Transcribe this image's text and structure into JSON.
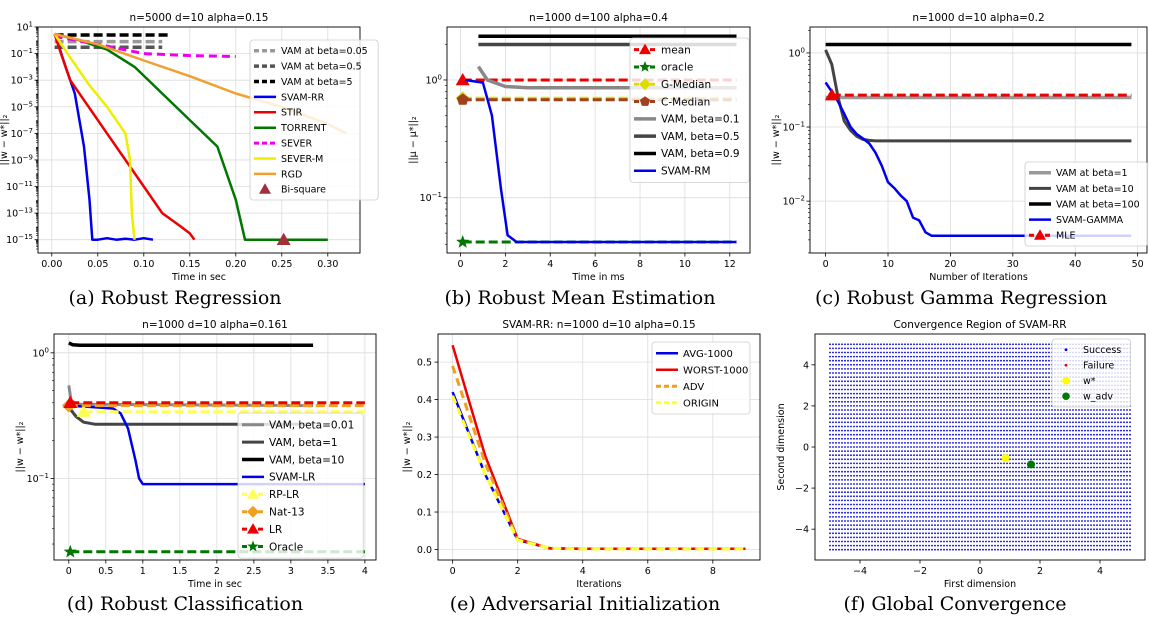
{
  "captions": {
    "a": "(a) Robust Regression",
    "b": "(b) Robust Mean Estimation",
    "c": "(c) Robust Gamma Regression",
    "d": "(d) Robust Classification",
    "e": "(e) Adversarial Initialization",
    "f": "(f) Global Convergence"
  },
  "chart_data": [
    {
      "id": "a",
      "type": "line",
      "title": "n=5000 d=10 alpha=0.15",
      "xlabel": "Time in sec",
      "ylabel": "||w − w*||₂",
      "yscale": "log",
      "xlim": [
        -0.015,
        0.335
      ],
      "ylim_exp": [
        -16,
        1
      ],
      "xticks": [
        0.0,
        0.05,
        0.1,
        0.15,
        0.2,
        0.25,
        0.3
      ],
      "xtick_labels": [
        "0.00",
        "0.05",
        "0.10",
        "0.15",
        "0.20",
        "0.25",
        "0.30"
      ],
      "ytick_exps": [
        1,
        -1,
        -3,
        -5,
        -7,
        -9,
        -11,
        -13,
        -15
      ],
      "grid": true,
      "legend": "right",
      "series": [
        {
          "name": "VAM at beta=0.05",
          "color": "#999999",
          "dash": "9,4",
          "width": 3.5,
          "x": [
            0.003,
            0.12
          ],
          "y": [
            0.8,
            0.8
          ]
        },
        {
          "name": "VAM at beta=0.5",
          "color": "#555555",
          "dash": "9,4",
          "width": 3.5,
          "x": [
            0.003,
            0.12
          ],
          "y": [
            0.3,
            0.3
          ]
        },
        {
          "name": "VAM at beta=5",
          "color": "#000000",
          "dash": "9,4",
          "width": 3.5,
          "x": [
            0.003,
            0.13
          ],
          "y": [
            2.5,
            2.5
          ]
        },
        {
          "name": "SVAM-RR",
          "color": "#0000ee",
          "width": 2.5,
          "x": [
            0.003,
            0.008,
            0.015,
            0.025,
            0.035,
            0.041,
            0.044,
            0.05,
            0.06,
            0.07,
            0.08,
            0.09,
            0.1,
            0.11
          ],
          "y": [
            3.0,
            0.3,
            0.01,
            0.0001,
            1e-08,
            1e-12,
            1e-15,
            1e-15,
            1.3e-15,
            1e-15,
            1.2e-15,
            1e-15,
            1.3e-15,
            1e-15
          ]
        },
        {
          "name": "STIR",
          "color": "#ee0000",
          "width": 2.5,
          "x": [
            0.003,
            0.01,
            0.02,
            0.04,
            0.06,
            0.08,
            0.1,
            0.12,
            0.14,
            0.15,
            0.155
          ],
          "y": [
            3.0,
            0.1,
            0.001,
            1e-05,
            1e-07,
            1e-09,
            1e-11,
            1e-13,
            1e-14,
            3e-15,
            1e-15
          ]
        },
        {
          "name": "TORRENT",
          "color": "#007700",
          "width": 2.5,
          "x": [
            0.003,
            0.03,
            0.06,
            0.09,
            0.12,
            0.15,
            0.18,
            0.2,
            0.21,
            0.3
          ],
          "y": [
            3.0,
            1.0,
            0.2,
            0.01,
            0.0001,
            1e-06,
            1e-08,
            1e-12,
            1e-15,
            1e-15
          ]
        },
        {
          "name": "SEVER",
          "color": "#ee00ee",
          "dash": "8,5",
          "width": 3,
          "x": [
            0.003,
            0.05,
            0.1,
            0.15,
            0.2
          ],
          "y": [
            2.0,
            0.5,
            0.1,
            0.07,
            0.06
          ]
        },
        {
          "name": "SEVER-M",
          "color": "#eeee00",
          "width": 2.5,
          "x": [
            0.003,
            0.02,
            0.04,
            0.06,
            0.08,
            0.085,
            0.087,
            0.09
          ],
          "y": [
            3.0,
            0.05,
            0.0005,
            1e-05,
            1e-07,
            1e-09,
            1e-13,
            1e-15
          ]
        },
        {
          "name": "RGD",
          "color": "#f0a030",
          "width": 2.5,
          "x": [
            0.003,
            0.05,
            0.1,
            0.15,
            0.2,
            0.25,
            0.3,
            0.32
          ],
          "y": [
            3.0,
            0.5,
            0.03,
            0.002,
            0.0001,
            1e-05,
            5e-07,
            1e-07
          ]
        },
        {
          "name": "Bi-square",
          "color": "#a0303a",
          "marker": "triangle",
          "x": [
            0.252
          ],
          "y": [
            1e-15
          ]
        }
      ]
    },
    {
      "id": "b",
      "type": "line",
      "title": "n=1000 d=100 alpha=0.4",
      "xlabel": "Time in ms",
      "ylabel": "||μ − μ*||₂",
      "yscale": "log",
      "xlim": [
        -0.6,
        12.9
      ],
      "ylim_exp": [
        -1.47,
        0.45
      ],
      "xticks": [
        0,
        2,
        4,
        6,
        8,
        10,
        12
      ],
      "ytick_exps": [
        0,
        -1
      ],
      "grid": true,
      "legend": "top-right",
      "series": [
        {
          "name": "mean",
          "color": "#ee0000",
          "marker": "triangle",
          "dash": "9,4",
          "width": 3,
          "x": [
            0.1,
            12.3
          ],
          "y": [
            1.0,
            1.0
          ]
        },
        {
          "name": "oracle",
          "color": "#007700",
          "marker": "star",
          "dash": "9,4",
          "width": 3,
          "x": [
            0.1,
            12.3
          ],
          "y": [
            0.042,
            0.042
          ]
        },
        {
          "name": "G-Median",
          "color": "#dddd00",
          "marker": "diamond",
          "dash": "9,4",
          "width": 3,
          "x": [
            0.1,
            12.3
          ],
          "y": [
            0.7,
            0.7
          ]
        },
        {
          "name": "C-Median",
          "color": "#a04020",
          "marker": "pentagon",
          "dash": "9,4",
          "width": 3,
          "x": [
            0.1,
            12.3
          ],
          "y": [
            0.68,
            0.68
          ]
        },
        {
          "name": "VAM, beta=0.1",
          "color": "#888888",
          "width": 3.5,
          "x": [
            0.8,
            1.2,
            2.0,
            3.0,
            12.3
          ],
          "y": [
            1.3,
            1.0,
            0.88,
            0.86,
            0.86
          ]
        },
        {
          "name": "VAM, beta=0.5",
          "color": "#444444",
          "width": 3.5,
          "x": [
            0.8,
            12.3
          ],
          "y": [
            2.0,
            2.0
          ]
        },
        {
          "name": "VAM, beta=0.9",
          "color": "#000000",
          "width": 3.5,
          "x": [
            0.8,
            12.3
          ],
          "y": [
            2.35,
            2.35
          ]
        },
        {
          "name": "SVAM-RM",
          "color": "#0000ee",
          "width": 2.5,
          "x": [
            0.2,
            1.0,
            1.4,
            1.8,
            2.1,
            2.5,
            12.3
          ],
          "y": [
            1.0,
            0.95,
            0.5,
            0.12,
            0.048,
            0.042,
            0.042
          ]
        }
      ]
    },
    {
      "id": "c",
      "type": "line",
      "title": "n=1000 d=10 alpha=0.2",
      "xlabel": "Number of Iterations",
      "ylabel": "||w − w*||₂",
      "yscale": "log",
      "xlim": [
        -2.5,
        51.5
      ],
      "ylim_exp": [
        -2.7,
        0.35
      ],
      "xticks": [
        0,
        10,
        20,
        30,
        40,
        50
      ],
      "ytick_exps": [
        0,
        -1,
        -2
      ],
      "grid": true,
      "legend": "bottom-right",
      "series": [
        {
          "name": "VAM at beta=1",
          "color": "#999999",
          "width": 3.5,
          "x": [
            0,
            49
          ],
          "y": [
            0.25,
            0.25
          ]
        },
        {
          "name": "VAM at beta=10",
          "color": "#444444",
          "width": 3,
          "x": [
            0,
            1,
            2,
            3,
            4,
            5,
            6,
            7,
            8,
            49
          ],
          "y": [
            1.1,
            0.7,
            0.25,
            0.12,
            0.09,
            0.075,
            0.068,
            0.066,
            0.065,
            0.065
          ]
        },
        {
          "name": "VAM at beta=100",
          "color": "#000000",
          "width": 3.5,
          "x": [
            0,
            49
          ],
          "y": [
            1.3,
            1.3
          ]
        },
        {
          "name": "SVAM-GAMMA",
          "color": "#0000ee",
          "width": 2.5,
          "x": [
            0,
            1,
            2,
            3,
            4,
            5,
            6,
            7,
            8,
            9,
            10,
            11,
            12,
            13,
            14,
            15,
            16,
            17,
            18,
            49
          ],
          "y": [
            0.4,
            0.3,
            0.22,
            0.15,
            0.1,
            0.08,
            0.07,
            0.06,
            0.045,
            0.03,
            0.018,
            0.015,
            0.012,
            0.01,
            0.006,
            0.0055,
            0.0038,
            0.0034,
            0.0034,
            0.0034
          ]
        },
        {
          "name": "MLE",
          "color": "#ee0000",
          "marker": "triangle",
          "dash": "9,4",
          "width": 3,
          "x": [
            1,
            49
          ],
          "y": [
            0.27,
            0.27
          ]
        }
      ]
    },
    {
      "id": "d",
      "type": "line",
      "title": "n=1000 d=10 alpha=0.161",
      "xlabel": "Time in sec",
      "ylabel": "||w − w*||₂",
      "yscale": "log",
      "xlim": [
        -0.2,
        4.15
      ],
      "ylim_exp": [
        -1.65,
        0.15
      ],
      "xticks": [
        0.0,
        0.5,
        1.0,
        1.5,
        2.0,
        2.5,
        3.0,
        3.5,
        4.0
      ],
      "ytick_exps": [
        0,
        -1
      ],
      "grid": true,
      "legend": "right",
      "series": [
        {
          "name": "VAM, beta=0.01",
          "color": "#888888",
          "width": 3,
          "x": [
            0,
            0.03,
            0.1,
            3.3
          ],
          "y": [
            0.55,
            0.42,
            0.39,
            0.38
          ]
        },
        {
          "name": "VAM, beta=1",
          "color": "#444444",
          "width": 3,
          "x": [
            0,
            0.03,
            0.1,
            0.2,
            0.35,
            3.3
          ],
          "y": [
            0.38,
            0.35,
            0.31,
            0.28,
            0.27,
            0.27
          ]
        },
        {
          "name": "VAM, beta=10",
          "color": "#000000",
          "width": 3.5,
          "x": [
            0,
            0.05,
            0.15,
            3.3
          ],
          "y": [
            1.2,
            1.16,
            1.15,
            1.15
          ]
        },
        {
          "name": "SVAM-LR",
          "color": "#0000ee",
          "width": 2.5,
          "x": [
            0,
            0.3,
            0.6,
            0.7,
            0.8,
            0.9,
            0.95,
            1.0,
            1.1,
            4.0
          ],
          "y": [
            0.38,
            0.37,
            0.36,
            0.33,
            0.25,
            0.14,
            0.1,
            0.09,
            0.09,
            0.09
          ]
        },
        {
          "name": "RP-LR",
          "color": "#ffff55",
          "marker": "triangle",
          "dash": "9,4",
          "width": 3,
          "x": [
            0.2,
            4.0
          ],
          "y": [
            0.34,
            0.34
          ]
        },
        {
          "name": "Nat-13",
          "color": "#f0a020",
          "marker": "diamond",
          "dash": "9,4",
          "width": 3,
          "x": [
            0.0,
            4.0
          ],
          "y": [
            0.38,
            0.38
          ]
        },
        {
          "name": "LR",
          "color": "#ee0000",
          "marker": "triangle",
          "dash": "9,4",
          "width": 3,
          "x": [
            0.02,
            4.0
          ],
          "y": [
            0.4,
            0.4
          ]
        },
        {
          "name": "Oracle",
          "color": "#007700",
          "marker": "star",
          "dash": "9,4",
          "width": 3,
          "x": [
            0.02,
            4.0
          ],
          "y": [
            0.026,
            0.026
          ]
        }
      ]
    },
    {
      "id": "e",
      "type": "line",
      "title": "SVAM-RR: n=1000 d=10 alpha=0.15",
      "xlabel": "Iterations",
      "ylabel": "||w − w*||₂",
      "yscale": "linear",
      "xlim": [
        -0.45,
        9.45
      ],
      "ylim": [
        -0.028,
        0.575
      ],
      "xticks": [
        0,
        2,
        4,
        6,
        8
      ],
      "yticks": [
        0.0,
        0.1,
        0.2,
        0.3,
        0.4,
        0.5
      ],
      "grid": true,
      "legend": "top-right",
      "series": [
        {
          "name": "AVG-1000",
          "color": "#0000ee",
          "width": 2.5,
          "x": [
            0,
            1,
            2,
            3,
            4,
            5,
            6,
            7,
            8,
            9
          ],
          "y": [
            0.42,
            0.2,
            0.025,
            0.003,
            0.002,
            0.002,
            0.002,
            0.002,
            0.002,
            0.002
          ]
        },
        {
          "name": "WORST-1000",
          "color": "#ee0000",
          "width": 2.5,
          "x": [
            0,
            1,
            2,
            3,
            4,
            5,
            6,
            7,
            8,
            9
          ],
          "y": [
            0.545,
            0.25,
            0.028,
            0.003,
            0.002,
            0.002,
            0.002,
            0.002,
            0.002,
            0.002
          ]
        },
        {
          "name": "ADV",
          "color": "#f0a020",
          "dash": "8,5",
          "width": 3,
          "x": [
            0,
            1,
            2,
            3,
            4,
            5,
            6,
            7,
            8,
            9
          ],
          "y": [
            0.49,
            0.23,
            0.026,
            0.003,
            0.002,
            0.002,
            0.002,
            0.002,
            0.002,
            0.002
          ]
        },
        {
          "name": "ORIGIN",
          "color": "#ffff33",
          "dash": "8,5",
          "width": 3,
          "x": [
            0,
            1,
            2,
            3,
            4,
            5,
            6,
            7,
            8,
            9
          ],
          "y": [
            0.41,
            0.2,
            0.025,
            0.003,
            0.002,
            0.002,
            0.002,
            0.002,
            0.002,
            0.002
          ]
        }
      ]
    },
    {
      "id": "f",
      "type": "scatter",
      "title": "Convergence Region of SVAM-RR",
      "xlabel": "First dimension",
      "ylabel": "Second dimension",
      "xlim": [
        -5.5,
        5.5
      ],
      "ylim": [
        -5.5,
        5.5
      ],
      "xticks": [
        -4,
        -2,
        0,
        2,
        4
      ],
      "yticks": [
        -4,
        -2,
        0,
        2,
        4
      ],
      "grid": false,
      "legend": "top-right",
      "grid_points": {
        "x_from": -5,
        "x_to": 5,
        "step_x": 0.1,
        "y_from": -5,
        "y_to": 5,
        "step_y": 0.2
      },
      "series": [
        {
          "name": "Success",
          "color": "#0000cc"
        },
        {
          "name": "Failure",
          "color": "#ee0000"
        },
        {
          "name": "w*",
          "color": "#ffff00",
          "x": [
            0.85
          ],
          "y": [
            -0.55
          ]
        },
        {
          "name": "w_adv",
          "color": "#007700",
          "x": [
            1.7
          ],
          "y": [
            -0.85
          ]
        }
      ]
    }
  ]
}
